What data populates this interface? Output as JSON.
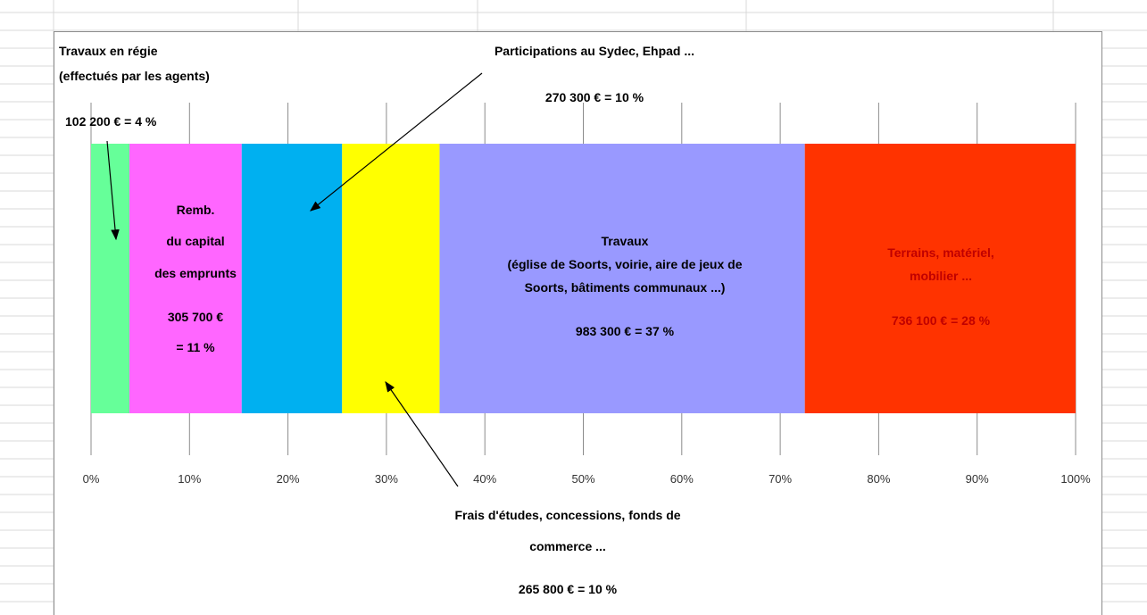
{
  "chart_data": {
    "type": "bar",
    "orientation": "horizontal-stacked-100",
    "x_ticks": [
      "0%",
      "10%",
      "20%",
      "30%",
      "40%",
      "50%",
      "60%",
      "70%",
      "80%",
      "90%",
      "100%"
    ],
    "xlim": [
      0,
      100
    ],
    "grid": true,
    "segments": [
      {
        "value": 4,
        "color": "#66ff99"
      },
      {
        "value": 11,
        "color": "#ff66ff"
      },
      {
        "value": 10,
        "color": "#00b0f0"
      },
      {
        "value": 10,
        "color": "#ffff00"
      },
      {
        "value": 37,
        "color": "#9999ff"
      },
      {
        "value": 28,
        "color": "#ff3300"
      }
    ],
    "percent_bounds": [
      0,
      3.9,
      15.3,
      25.5,
      35.4,
      72.5,
      100
    ]
  },
  "labels": {
    "regie_line1": "Travaux en régie",
    "regie_line2": "(effectués par les agents)",
    "regie_amount": "102 200 € = 4 %",
    "sydec_title": "Participations au Sydec, Ehpad ...",
    "sydec_amount": "270 300 € = 10 %",
    "remb_line1": "Remb.",
    "remb_line2": "du capital",
    "remb_line3": "des emprunts",
    "remb_amount1": "305 700 €",
    "remb_amount2": "= 11 %",
    "travaux_line1": "Travaux",
    "travaux_line2": "(église de Soorts, voirie, aire de jeux de",
    "travaux_line3": "Soorts, bâtiments communaux ...)",
    "travaux_amount": "983 300 € = 37 %",
    "terrains_line1": "Terrains, matériel,",
    "terrains_line2": "mobilier ...",
    "terrains_amount": "736 100 € = 28 %",
    "frais_line1": "Frais d'études, concessions, fonds de",
    "frais_line2": "commerce ...",
    "frais_amount": "265 800 € = 10 %"
  }
}
